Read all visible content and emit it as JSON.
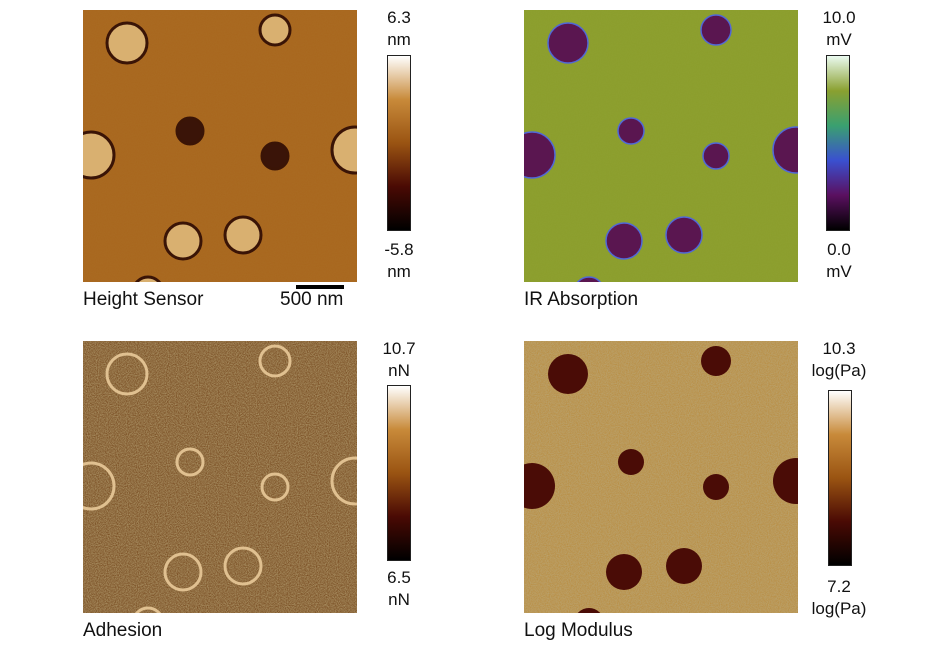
{
  "panels": [
    {
      "caption": "Height Sensor",
      "max_value": "6.3",
      "max_unit": "nm",
      "min_value": "-5.8",
      "min_unit": "nm",
      "scale_bar": "500 nm",
      "colormap": [
        "#000000",
        "#4a0a04",
        "#9a5412",
        "#c88a3a",
        "#ffffff"
      ]
    },
    {
      "caption": "IR Absorption",
      "max_value": "10.0",
      "max_unit": "mV",
      "min_value": "0.0",
      "min_unit": "mV",
      "colormap": [
        "#000000",
        "#5a1060",
        "#3a50d0",
        "#3aa070",
        "#8aa030",
        "#eafaf0"
      ]
    },
    {
      "caption": "Adhesion",
      "max_value": "10.7",
      "max_unit": "nN",
      "min_value": "6.5",
      "min_unit": "nN",
      "colormap": [
        "#000000",
        "#4a0a04",
        "#9a5412",
        "#c88a3a",
        "#ffffff"
      ]
    },
    {
      "caption": "Log Modulus",
      "max_value": "10.3",
      "max_unit": "log(Pa)",
      "min_value": "7.2",
      "min_unit": "log(Pa)",
      "colormap": [
        "#000000",
        "#4a0a04",
        "#9a5412",
        "#c88a3a",
        "#ffffff"
      ]
    }
  ]
}
